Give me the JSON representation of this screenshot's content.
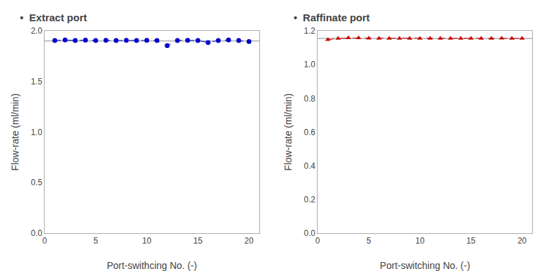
{
  "chart_data": [
    {
      "type": "line",
      "title": "•  Extract port",
      "x": [
        1,
        2,
        3,
        4,
        5,
        6,
        7,
        8,
        9,
        10,
        11,
        12,
        13,
        14,
        15,
        16,
        17,
        18,
        19,
        20
      ],
      "values": [
        1.905,
        1.91,
        1.905,
        1.908,
        1.905,
        1.907,
        1.905,
        1.906,
        1.905,
        1.907,
        1.905,
        1.855,
        1.905,
        1.907,
        1.905,
        1.885,
        1.905,
        1.91,
        1.905,
        1.895
      ],
      "color": "#0000CC",
      "marker": "circle",
      "line_style": "dashed",
      "hline": {
        "value": 1.9,
        "color": "#888888"
      },
      "xlabel": "Port-swithcing No. (-)",
      "ylabel": "Flow-rate (ml/min)",
      "xlim": [
        0,
        21
      ],
      "ylim": [
        0,
        2
      ],
      "xticks": [
        0,
        5,
        10,
        15,
        20
      ],
      "yticks": [
        {
          "value": 0,
          "label": "0.0"
        },
        0.5,
        {
          "value": 1,
          "label": "1.0"
        },
        1.5,
        {
          "value": 2,
          "label": "2.0"
        }
      ],
      "grid": false
    },
    {
      "type": "line",
      "title": "•  Raffinate port",
      "x": [
        1,
        2,
        3,
        4,
        5,
        6,
        7,
        8,
        9,
        10,
        11,
        12,
        13,
        14,
        15,
        16,
        17,
        18,
        19,
        20
      ],
      "values": [
        1.148,
        1.155,
        1.158,
        1.158,
        1.156,
        1.155,
        1.155,
        1.155,
        1.155,
        1.155,
        1.155,
        1.155,
        1.155,
        1.155,
        1.155,
        1.155,
        1.155,
        1.156,
        1.155,
        1.155
      ],
      "color": "#CC0000",
      "marker": "triangle",
      "line_style": "dashed",
      "hline": {
        "value": 1.155,
        "color": "#888888"
      },
      "xlabel": "Port-switching No. (-)",
      "ylabel": "Flow-rate (ml/min)",
      "xlim": [
        0,
        21
      ],
      "ylim": [
        0,
        1.2
      ],
      "xticks": [
        0,
        5,
        10,
        15,
        20
      ],
      "yticks": [
        {
          "value": 0,
          "label": "0.0"
        },
        0.2,
        0.4,
        0.6,
        0.8,
        {
          "value": 1,
          "label": "1.0"
        },
        1.2
      ],
      "grid": false
    }
  ]
}
